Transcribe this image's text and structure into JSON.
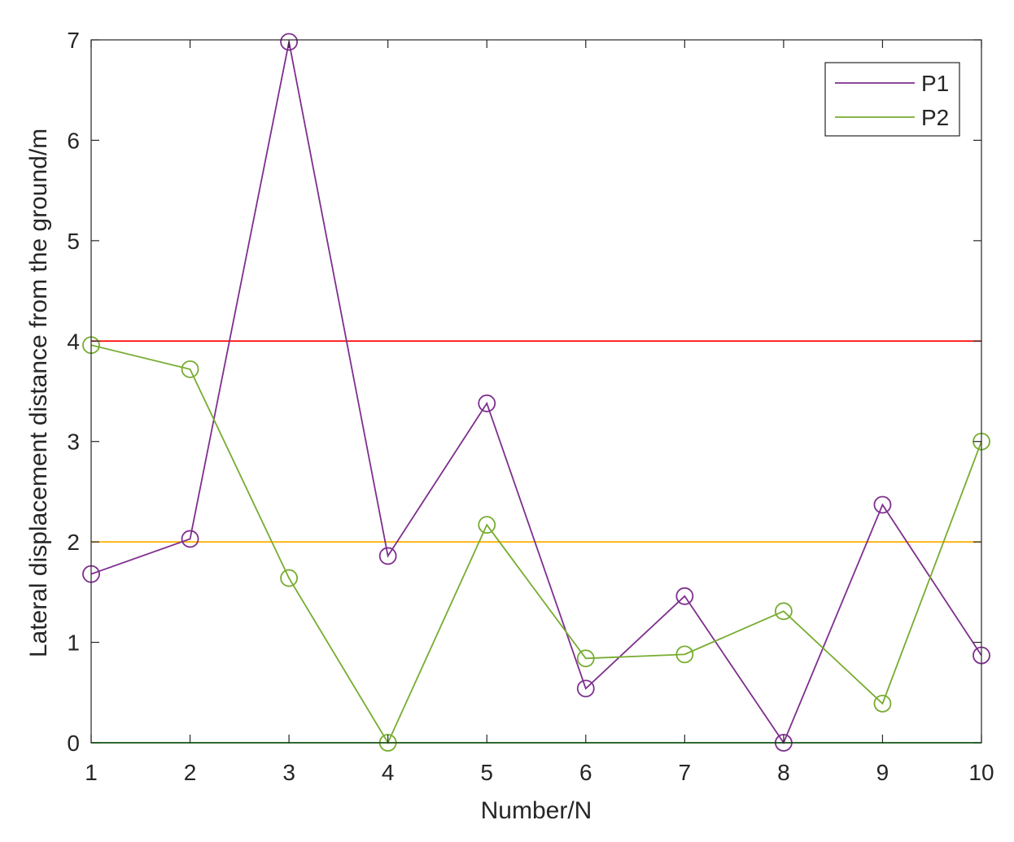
{
  "chart_data": {
    "type": "line",
    "title": "",
    "xlabel": "Number/N",
    "ylabel": "Lateral displacement distance from the ground/m",
    "x": [
      1,
      2,
      3,
      4,
      5,
      6,
      7,
      8,
      9,
      10
    ],
    "xlim": [
      1,
      10
    ],
    "ylim": [
      0,
      7
    ],
    "xticks": [
      "1",
      "2",
      "3",
      "4",
      "5",
      "6",
      "7",
      "8",
      "9",
      "10"
    ],
    "yticks": [
      "0",
      "1",
      "2",
      "3",
      "4",
      "5",
      "6",
      "7"
    ],
    "grid": false,
    "legend_position": "top-right",
    "series": [
      {
        "name": "P1",
        "color": "#7e2f8e",
        "marker": "circle",
        "values": [
          1.68,
          2.03,
          6.98,
          1.86,
          3.38,
          0.54,
          1.46,
          0.0,
          2.37,
          0.87
        ]
      },
      {
        "name": "P2",
        "color": "#77ac30",
        "marker": "circle",
        "values": [
          3.96,
          3.72,
          1.64,
          0.0,
          2.17,
          0.84,
          0.88,
          1.31,
          0.39,
          3.0
        ]
      }
    ],
    "reference_lines": [
      {
        "y": 4,
        "color": "#ff0000"
      },
      {
        "y": 2,
        "color": "#ffb000"
      },
      {
        "y": 0,
        "color": "#00c000"
      }
    ]
  }
}
